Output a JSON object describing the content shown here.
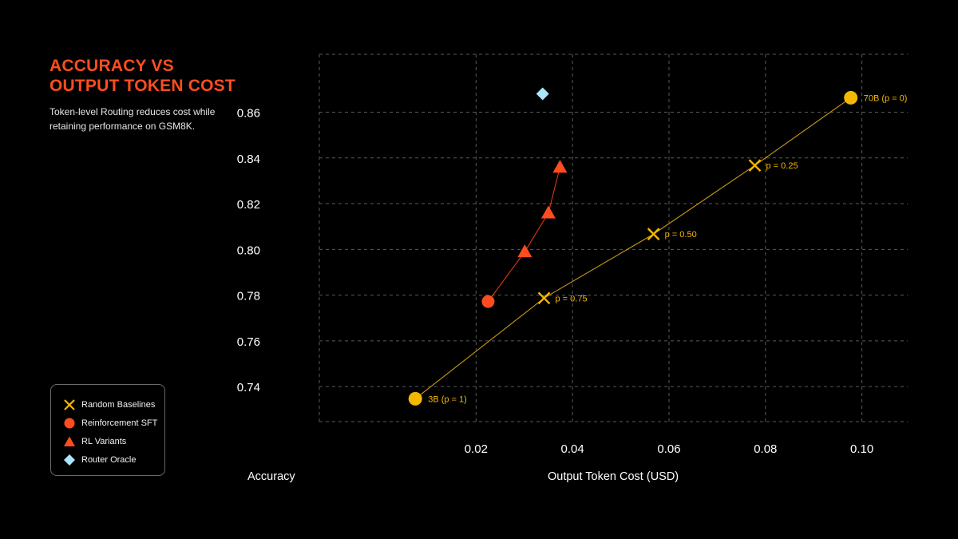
{
  "header": {
    "title": "ACCURACY VS\nOUTPUT TOKEN COST",
    "subtitle": "Token-level Routing reduces cost while retaining performance on GSM8K."
  },
  "legend": {
    "items": [
      {
        "label": "Random Baselines",
        "icon": "x-marker-icon",
        "color": "#f5b800"
      },
      {
        "label": "Reinforcement SFT",
        "icon": "circle-marker-icon",
        "color": "#ff4c1f"
      },
      {
        "label": "RL Variants",
        "icon": "triangle-marker-icon",
        "color": "#ff4c1f"
      },
      {
        "label": "Router Oracle",
        "icon": "diamond-marker-icon",
        "color": "#a8e6ff"
      }
    ]
  },
  "chart_data": {
    "type": "scatter",
    "ylabel": "Accuracy",
    "xlabel": "Output Token Cost (USD)",
    "xlim": [
      -0.0125,
      0.1095
    ],
    "ylim": [
      0.7247,
      0.8853
    ],
    "xticks": [
      0.02,
      0.04,
      0.06,
      0.08,
      0.1
    ],
    "xtick_labels": [
      "0.02",
      "0.04",
      "0.06",
      "0.08",
      "0.10"
    ],
    "yticks": [
      0.74,
      0.76,
      0.78,
      0.8,
      0.82,
      0.84,
      0.86
    ],
    "ytick_labels": [
      "0.74",
      "0.76",
      "0.78",
      "0.80",
      "0.82",
      "0.84",
      "0.86"
    ],
    "grid": true,
    "colors": {
      "random": "#f5b800",
      "orange": "#ff4c1f",
      "oracle": "#a8e6ff",
      "grid": "#5a5a5a",
      "text": "#ffffff"
    },
    "series": [
      {
        "name": "Random Baselines",
        "marker": "x+circle",
        "points": [
          {
            "x": 0.0074,
            "y": 0.7347,
            "label": "3B (p = 1)",
            "marker": "circle"
          },
          {
            "x": 0.0341,
            "y": 0.7787,
            "label": "p = 0.75",
            "marker": "x"
          },
          {
            "x": 0.0568,
            "y": 0.8067,
            "label": "p = 0.50",
            "marker": "x"
          },
          {
            "x": 0.0778,
            "y": 0.8367,
            "label": "p = 0.25",
            "marker": "x"
          },
          {
            "x": 0.0977,
            "y": 0.8663,
            "label": "70B (p = 0)",
            "marker": "circle"
          }
        ]
      },
      {
        "name": "Reinforcement SFT",
        "marker": "circle",
        "points": [
          {
            "x": 0.0225,
            "y": 0.7772
          }
        ]
      },
      {
        "name": "RL Variants",
        "marker": "triangle",
        "points": [
          {
            "x": 0.0301,
            "y": 0.799
          },
          {
            "x": 0.035,
            "y": 0.816
          },
          {
            "x": 0.0374,
            "y": 0.836
          }
        ]
      },
      {
        "name": "Router Oracle",
        "marker": "diamond",
        "points": [
          {
            "x": 0.0338,
            "y": 0.868
          }
        ]
      }
    ]
  }
}
